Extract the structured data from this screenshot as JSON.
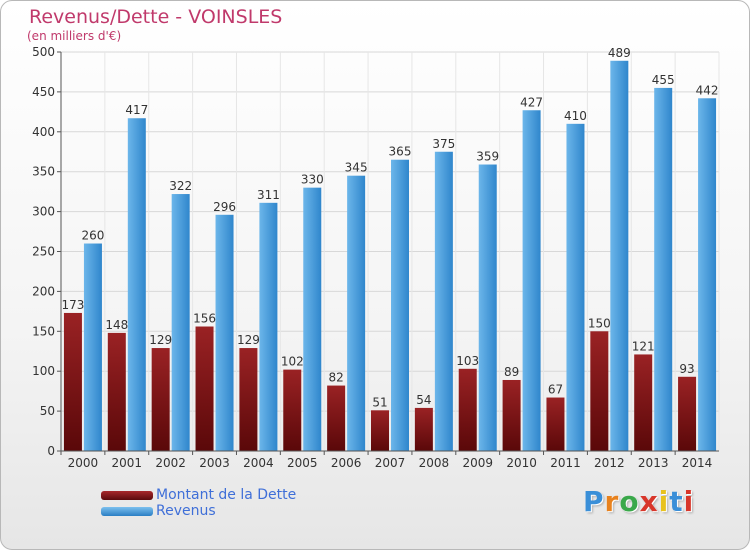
{
  "title": "Revenus/Dette - VOINSLES",
  "subtitle": "(en milliers d'€)",
  "colors": {
    "debt": "#7a1416",
    "revenue": "#3d98dc",
    "title": "#c0396b",
    "legend_text": "#3f6fd8"
  },
  "legend": [
    {
      "label": "Montant de la Dette",
      "color": "#7a1416"
    },
    {
      "label": "Revenus",
      "color": "#3d98dc"
    }
  ],
  "logo": {
    "text": "Proxiti",
    "letters": [
      "P",
      "r",
      "o",
      "x",
      "i",
      "t",
      "i"
    ],
    "letter_colors": [
      "#3a8fd8",
      "#e8821e",
      "#3aa84a",
      "#d8362a",
      "#e8c21e",
      "#3a8fd8",
      "#d8362a"
    ]
  },
  "chart_data": {
    "type": "bar",
    "categories": [
      "2000",
      "2001",
      "2002",
      "2003",
      "2004",
      "2005",
      "2006",
      "2007",
      "2008",
      "2009",
      "2010",
      "2011",
      "2012",
      "2013",
      "2014"
    ],
    "series": [
      {
        "name": "Montant de la Dette",
        "values": [
          173,
          148,
          129,
          156,
          129,
          102,
          82,
          51,
          54,
          103,
          89,
          67,
          150,
          121,
          93
        ]
      },
      {
        "name": "Revenus",
        "values": [
          260,
          417,
          322,
          296,
          311,
          330,
          345,
          365,
          375,
          359,
          427,
          410,
          489,
          455,
          442
        ]
      }
    ],
    "ylim": [
      0,
      500
    ],
    "yticks": [
      0,
      50,
      100,
      150,
      200,
      250,
      300,
      350,
      400,
      450,
      500
    ],
    "grid": true,
    "legend_position": "bottom-left"
  }
}
